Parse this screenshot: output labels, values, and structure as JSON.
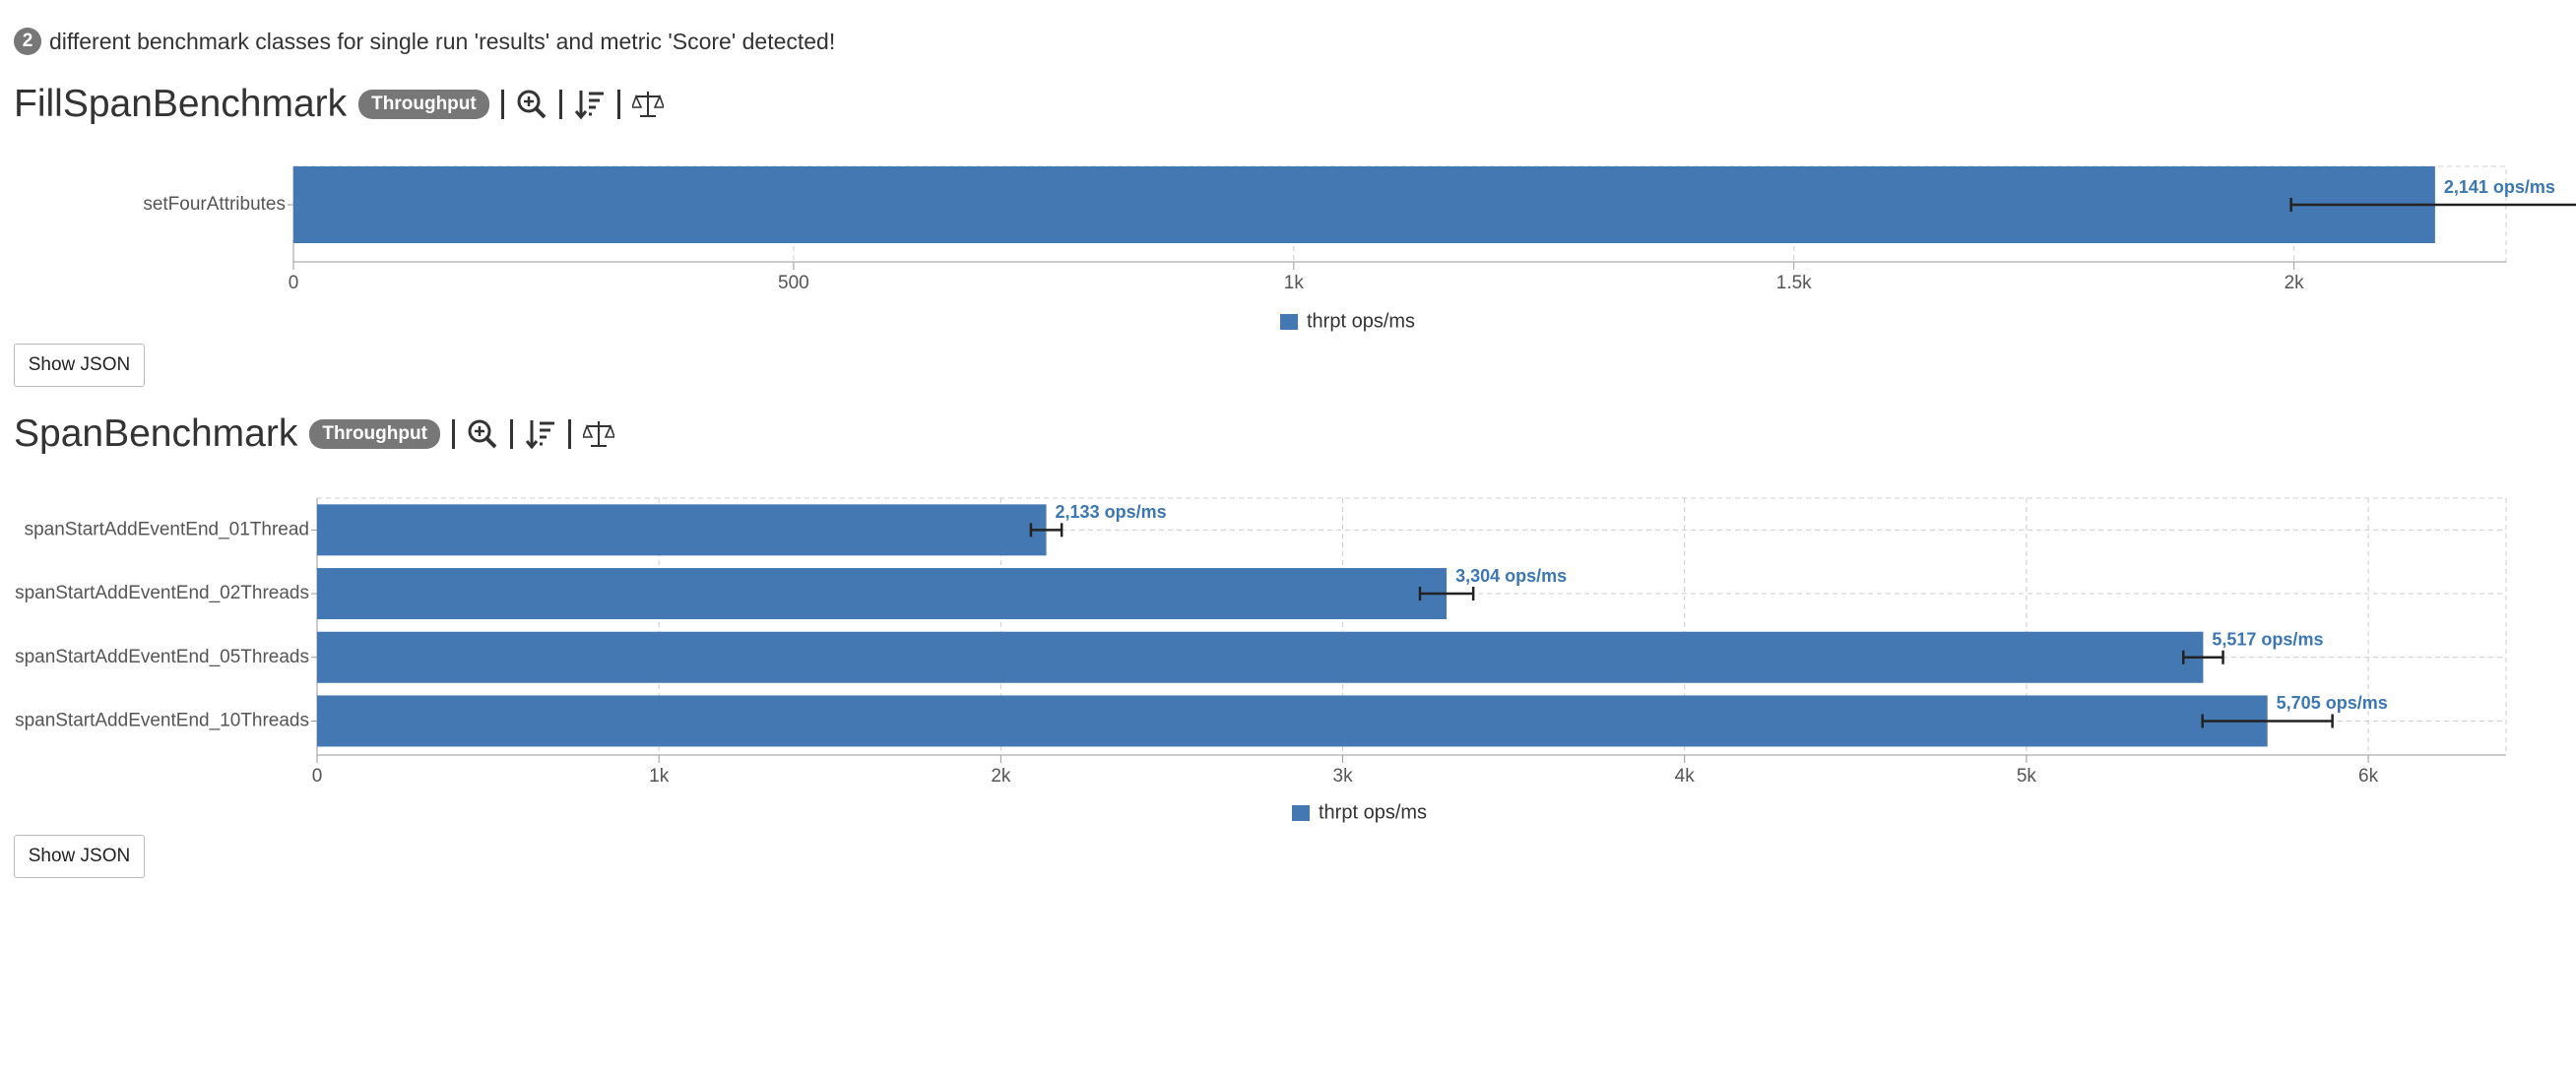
{
  "notice": {
    "count": 2,
    "text": "different benchmark classes for single run 'results' and metric 'Score' detected!"
  },
  "chart_data": [
    {
      "type": "bar",
      "title": "FillSpanBenchmark",
      "badge": "Throughput",
      "button": "Show JSON",
      "categories": [
        "setFourAttributes"
      ],
      "series": [
        {
          "name": "thrpt ops/ms",
          "color": "#4478b2",
          "values": [
            2141
          ],
          "errors": [
            144
          ],
          "value_labels": [
            "2,141 ops/ms"
          ]
        }
      ],
      "xlim": [
        0,
        2212
      ],
      "xticks": [
        0,
        500,
        {
          "value": 1000,
          "label": "1k"
        },
        {
          "value": 1500,
          "label": "1.5k"
        },
        {
          "value": 2000,
          "label": "2k"
        }
      ],
      "grid": true
    },
    {
      "type": "bar",
      "title": "SpanBenchmark",
      "badge": "Throughput",
      "button": "Show JSON",
      "categories": [
        "spanStartAddEventEnd_01Thread",
        "spanStartAddEventEnd_02Threads",
        "spanStartAddEventEnd_05Threads",
        "spanStartAddEventEnd_10Threads"
      ],
      "series": [
        {
          "name": "thrpt ops/ms",
          "color": "#4478b2",
          "values": [
            2133,
            3304,
            5517,
            5705
          ],
          "errors": [
            45,
            78,
            58,
            190
          ],
          "value_labels": [
            "2,133 ops/ms",
            "3,304 ops/ms",
            "5,517 ops/ms",
            "5,705 ops/ms"
          ]
        }
      ],
      "xlim": [
        0,
        6403
      ],
      "xticks": [
        0,
        {
          "value": 1000,
          "label": "1k"
        },
        {
          "value": 2000,
          "label": "2k"
        },
        {
          "value": 3000,
          "label": "3k"
        },
        {
          "value": 4000,
          "label": "4k"
        },
        {
          "value": 5000,
          "label": "5k"
        },
        {
          "value": 6000,
          "label": "6k"
        }
      ],
      "grid": true
    }
  ]
}
